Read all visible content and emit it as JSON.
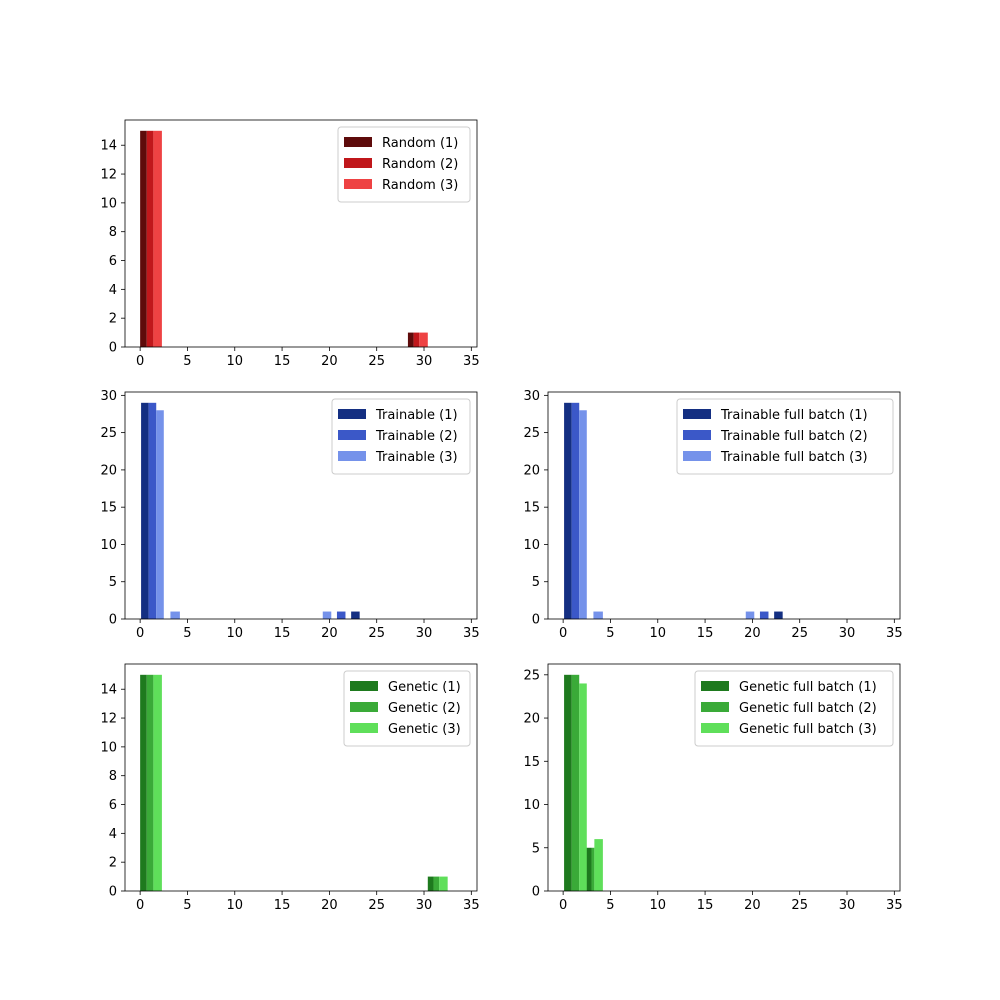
{
  "chart_data": [
    {
      "type": "bar",
      "xlim": [
        -1.6,
        35.6
      ],
      "ylim": [
        0,
        15.75
      ],
      "xticks": [
        "0",
        "5",
        "10",
        "15",
        "20",
        "25",
        "30",
        "35"
      ],
      "yticks": [
        "0",
        "2",
        "4",
        "6",
        "8",
        "10",
        "12",
        "14"
      ],
      "legend_loc": "top-right",
      "series": [
        {
          "name": "Random (1)",
          "color": "#5e0b0b",
          "bars": [
            {
              "x": 0,
              "w": 0.7,
              "y": 15
            },
            {
              "x": 28.3,
              "w": 0.6,
              "y": 1
            }
          ]
        },
        {
          "name": "Random (2)",
          "color": "#c0171b",
          "bars": [
            {
              "x": 0.7,
              "w": 0.7,
              "y": 15
            },
            {
              "x": 28.9,
              "w": 0.6,
              "y": 1
            }
          ]
        },
        {
          "name": "Random (3)",
          "color": "#ee4243",
          "bars": [
            {
              "x": 1.4,
              "w": 0.9,
              "y": 15
            },
            {
              "x": 29.5,
              "w": 0.9,
              "y": 1
            }
          ]
        }
      ]
    },
    {
      "type": "bar",
      "xlim": [
        -1.6,
        35.6
      ],
      "ylim": [
        0,
        30.45
      ],
      "xticks": [
        "0",
        "5",
        "10",
        "15",
        "20",
        "25",
        "30",
        "35"
      ],
      "yticks": [
        "0",
        "5",
        "10",
        "15",
        "20",
        "25",
        "30"
      ],
      "legend_loc": "top-right",
      "series": [
        {
          "name": "Trainable (1)",
          "color": "#142f82",
          "bars": [
            {
              "x": 0.1,
              "w": 0.8,
              "y": 29
            },
            {
              "x": 22.3,
              "w": 0.9,
              "y": 1
            }
          ]
        },
        {
          "name": "Trainable (2)",
          "color": "#3b58c8",
          "bars": [
            {
              "x": 0.9,
              "w": 0.8,
              "y": 29
            },
            {
              "x": 20.8,
              "w": 0.9,
              "y": 1
            }
          ]
        },
        {
          "name": "Trainable (3)",
          "color": "#7592ea",
          "bars": [
            {
              "x": 1.7,
              "w": 0.8,
              "y": 28
            },
            {
              "x": 3.2,
              "w": 1.0,
              "y": 1
            },
            {
              "x": 19.3,
              "w": 0.9,
              "y": 1
            }
          ]
        }
      ]
    },
    {
      "type": "bar",
      "xlim": [
        -1.6,
        35.6
      ],
      "ylim": [
        0,
        30.45
      ],
      "xticks": [
        "0",
        "5",
        "10",
        "15",
        "20",
        "25",
        "30",
        "35"
      ],
      "yticks": [
        "0",
        "5",
        "10",
        "15",
        "20",
        "25",
        "30"
      ],
      "legend_loc": "top-right",
      "series": [
        {
          "name": "Trainable full batch (1)",
          "color": "#142f82",
          "bars": [
            {
              "x": 0.1,
              "w": 0.8,
              "y": 29
            },
            {
              "x": 22.3,
              "w": 0.9,
              "y": 1
            }
          ]
        },
        {
          "name": "Trainable full batch (2)",
          "color": "#3b58c8",
          "bars": [
            {
              "x": 0.9,
              "w": 0.8,
              "y": 29
            },
            {
              "x": 20.8,
              "w": 0.9,
              "y": 1
            }
          ]
        },
        {
          "name": "Trainable full batch (3)",
          "color": "#7592ea",
          "bars": [
            {
              "x": 1.7,
              "w": 0.8,
              "y": 28
            },
            {
              "x": 3.2,
              "w": 1.0,
              "y": 1
            },
            {
              "x": 19.3,
              "w": 0.9,
              "y": 1
            }
          ]
        }
      ]
    },
    {
      "type": "bar",
      "xlim": [
        -1.6,
        35.6
      ],
      "ylim": [
        0,
        15.75
      ],
      "xticks": [
        "0",
        "5",
        "10",
        "15",
        "20",
        "25",
        "30",
        "35"
      ],
      "yticks": [
        "0",
        "2",
        "4",
        "6",
        "8",
        "10",
        "12",
        "14"
      ],
      "legend_loc": "top-right",
      "series": [
        {
          "name": "Genetic (1)",
          "color": "#1e7a1e",
          "bars": [
            {
              "x": 0,
              "w": 0.7,
              "y": 15
            },
            {
              "x": 30.4,
              "w": 0.6,
              "y": 1
            }
          ]
        },
        {
          "name": "Genetic (2)",
          "color": "#3aaa38",
          "bars": [
            {
              "x": 0.7,
              "w": 0.7,
              "y": 15
            },
            {
              "x": 31.0,
              "w": 0.6,
              "y": 1
            }
          ]
        },
        {
          "name": "Genetic (3)",
          "color": "#5fdf5a",
          "bars": [
            {
              "x": 1.4,
              "w": 0.9,
              "y": 15
            },
            {
              "x": 31.6,
              "w": 0.9,
              "y": 1
            }
          ]
        }
      ]
    },
    {
      "type": "bar",
      "xlim": [
        -1.6,
        35.6
      ],
      "ylim": [
        0,
        26.25
      ],
      "xticks": [
        "0",
        "5",
        "10",
        "15",
        "20",
        "25",
        "30",
        "35"
      ],
      "yticks": [
        "0",
        "5",
        "10",
        "15",
        "20",
        "25"
      ],
      "legend_loc": "top-right",
      "series": [
        {
          "name": "Genetic full batch (1)",
          "color": "#1e7a1e",
          "bars": [
            {
              "x": 0.1,
              "w": 0.8,
              "y": 25
            },
            {
              "x": 2.4,
              "w": 0.6,
              "y": 5
            }
          ]
        },
        {
          "name": "Genetic full batch (2)",
          "color": "#3aaa38",
          "bars": [
            {
              "x": 0.9,
              "w": 0.8,
              "y": 25
            },
            {
              "x": 3.0,
              "w": 0.3,
              "y": 5
            }
          ]
        },
        {
          "name": "Genetic full batch (3)",
          "color": "#5fdf5a",
          "bars": [
            {
              "x": 1.7,
              "w": 0.8,
              "y": 24
            },
            {
              "x": 3.3,
              "w": 0.9,
              "y": 6
            }
          ]
        }
      ]
    }
  ]
}
